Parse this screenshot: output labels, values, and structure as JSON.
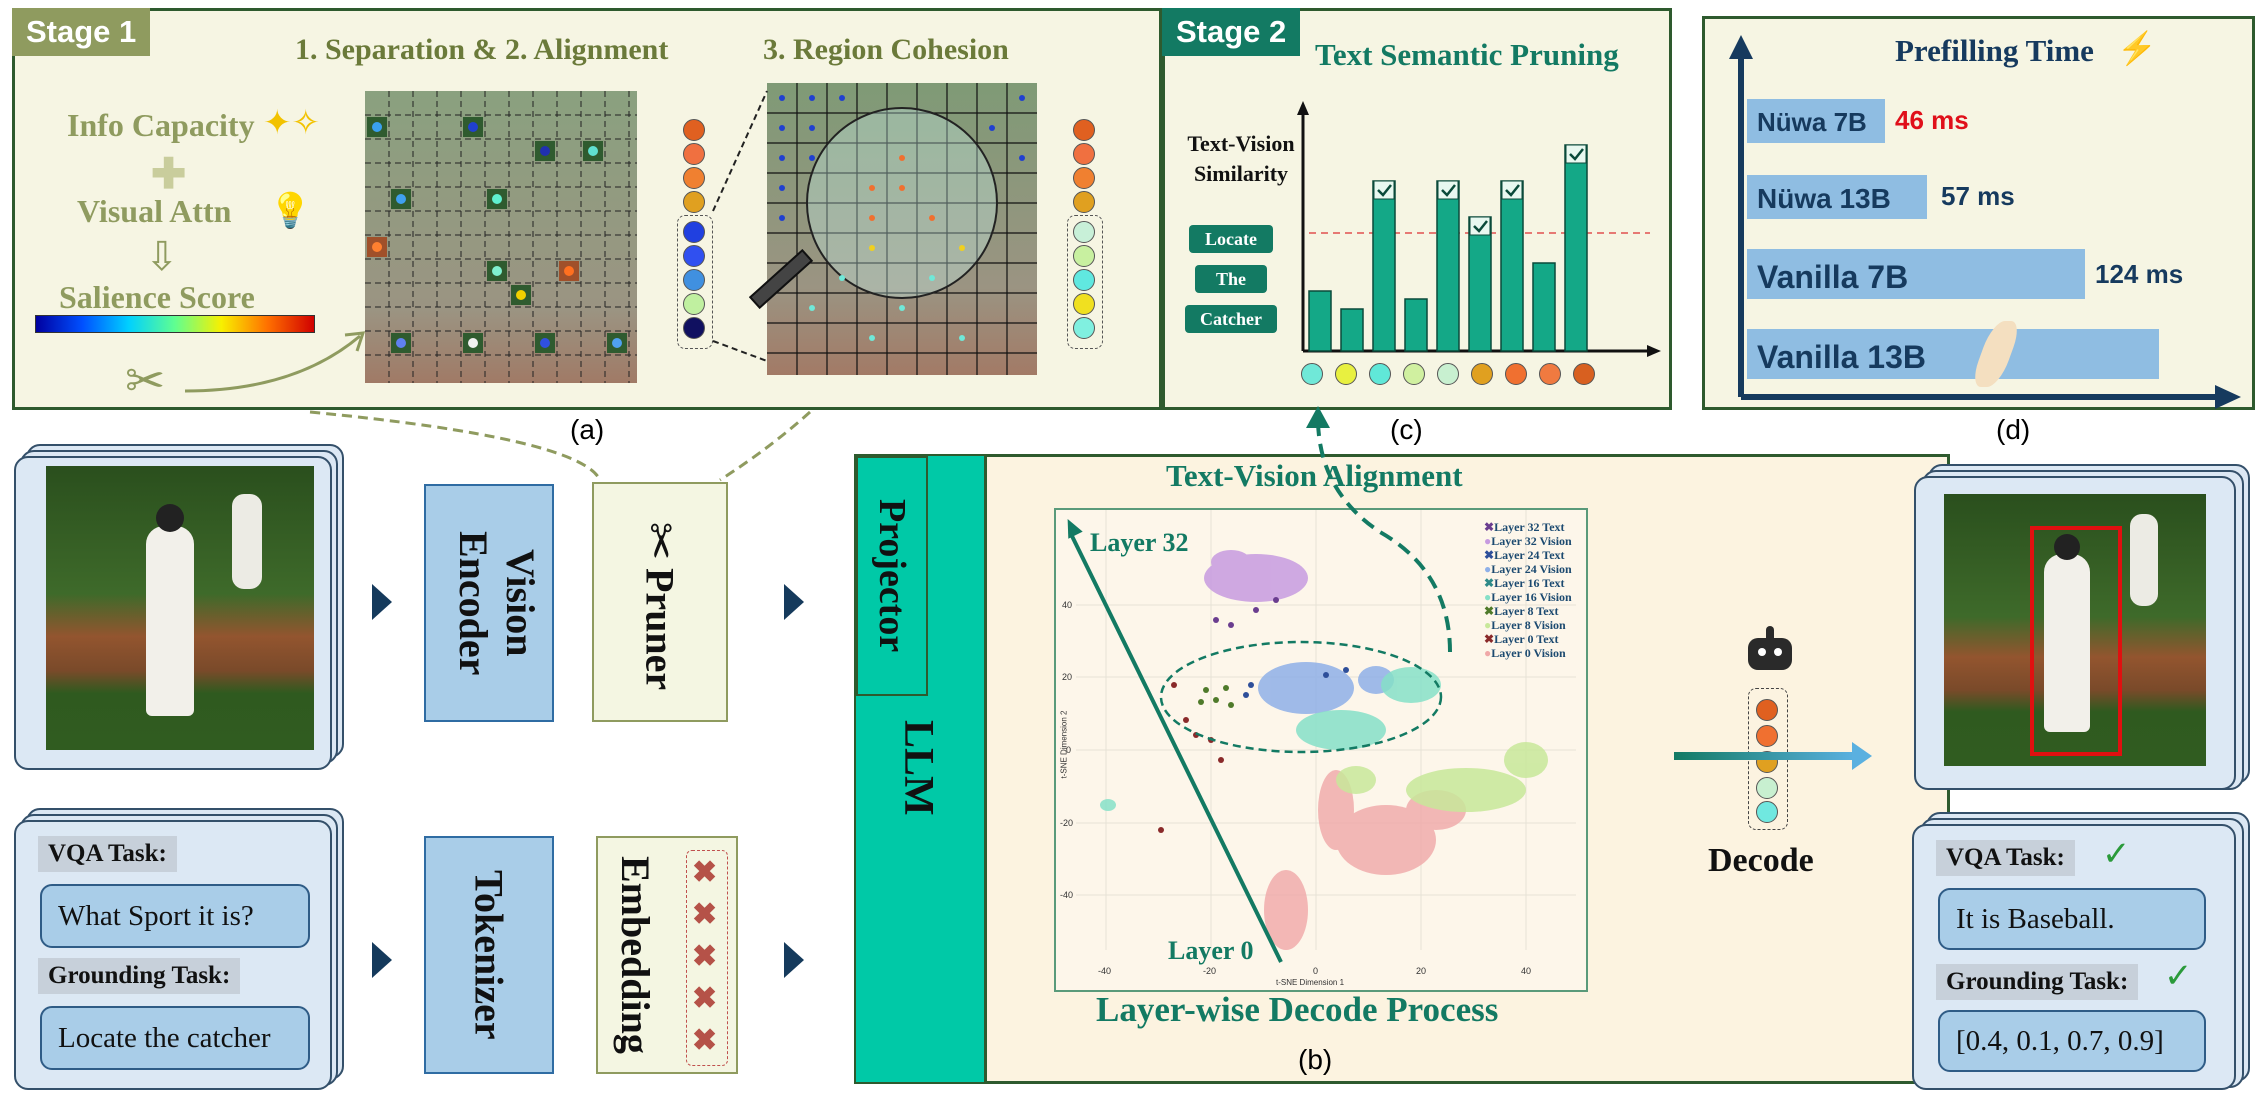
{
  "stage1": {
    "badge": "Stage 1",
    "title_sep_align": "1. Separation & 2. Alignment",
    "title_region": "3. Region Cohesion",
    "info_capacity": "Info Capacity",
    "visual_attn": "Visual Attn",
    "salience_score": "Salience Score",
    "caption": "(a)"
  },
  "stage2": {
    "badge": "Stage 2",
    "title": "Text Semantic Pruning",
    "ylabel_line1": "Text-Vision",
    "ylabel_line2": "Similarity",
    "words": [
      "Locate",
      "The",
      "Catcher"
    ],
    "caption": "(c)"
  },
  "prefill": {
    "title": "Prefilling Time",
    "caption": "(d)",
    "rows": [
      {
        "label": "Nüwa 7B",
        "time": "46 ms",
        "highlight": true
      },
      {
        "label": "Nüwa 13B",
        "time": "57 ms",
        "highlight": false
      },
      {
        "label": "Vanilla 7B",
        "time": "124 ms",
        "highlight": false
      },
      {
        "label": "Vanilla 13B",
        "time": "",
        "highlight": false
      }
    ]
  },
  "pipeline": {
    "vision_encoder": "Vision Encoder",
    "pruner": "Pruner",
    "tokenizer": "Tokenizer",
    "embedding": "Embedding",
    "projector": "Projector",
    "llm": "LLM",
    "decode": "Decode"
  },
  "alignment": {
    "title": "Text-Vision Alignment",
    "subtitle": "Layer-wise Decode Process",
    "caption": "(b)",
    "layer_top": "Layer 32",
    "layer_bottom": "Layer 0",
    "legend": [
      {
        "label": "Layer 32 Text",
        "color": "#6a3d8f"
      },
      {
        "label": "Layer 32 Vision",
        "color": "#c79be0"
      },
      {
        "label": "Layer 24 Text",
        "color": "#2e4f9a"
      },
      {
        "label": "Layer 24 Vision",
        "color": "#8fb0e8"
      },
      {
        "label": "Layer 16 Text",
        "color": "#2f8a88"
      },
      {
        "label": "Layer 16 Vision",
        "color": "#86e0c8"
      },
      {
        "label": "Layer 8 Text",
        "color": "#4f7a2a"
      },
      {
        "label": "Layer 8 Vision",
        "color": "#c8e89a"
      },
      {
        "label": "Layer 0 Text",
        "color": "#8a2a2a"
      },
      {
        "label": "Layer 0 Vision",
        "color": "#f0a8a8"
      }
    ],
    "x_axis_label": "t-SNE Dimension 1",
    "y_axis_label": "t-SNE Dimension 2",
    "x_ticks": [
      "-40",
      "-20",
      "0",
      "20",
      "40"
    ],
    "y_ticks": [
      "40",
      "20",
      "0",
      "-20",
      "-40"
    ]
  },
  "input_tasks": {
    "vqa_label": "VQA Task:",
    "vqa_question": "What Sport it is?",
    "grounding_label": "Grounding Task:",
    "grounding_question": "Locate the catcher"
  },
  "output_tasks": {
    "vqa_label": "VQA Task:",
    "vqa_answer": "It is Baseball.",
    "grounding_label": "Grounding Task:",
    "grounding_answer": "[0.4, 0.1, 0.7, 0.9]"
  },
  "colors": {
    "teal": "#00c9a7",
    "dark_green": "#137a63",
    "olive": "#8f9b5f",
    "blue_block": "#a9cde8",
    "bar_blue": "#8fbde2",
    "highlight_red": "#e0101a"
  }
}
